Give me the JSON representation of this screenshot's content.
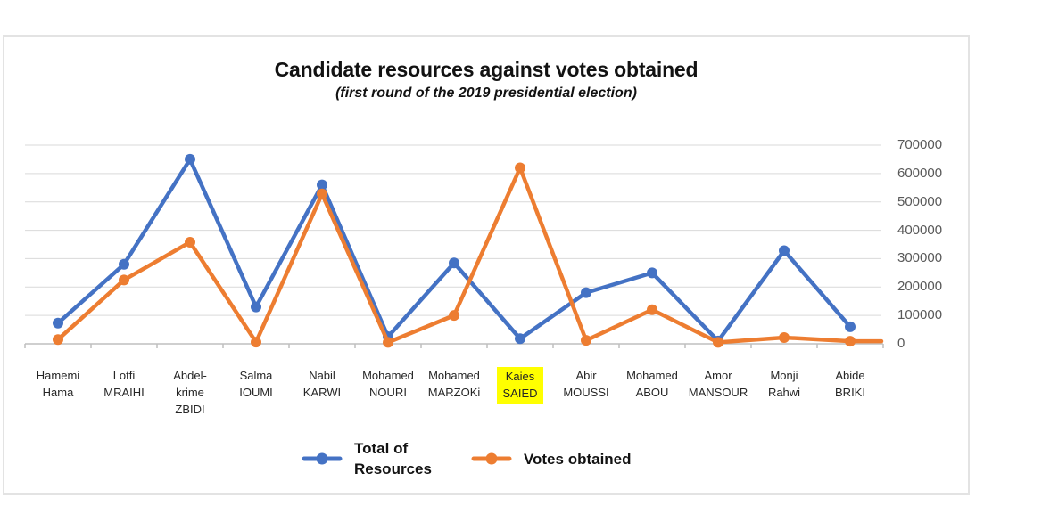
{
  "title": "Candidate resources against votes obtained",
  "subtitle": "(first round of the 2019 presidential election)",
  "legend": [
    {
      "label": "Total of\nResources",
      "color": "#4472c4"
    },
    {
      "label": "Votes obtained",
      "color": "#ed7d31"
    }
  ],
  "colors": {
    "resources_series": "#4472c4",
    "votes_series": "#ed7d31",
    "gridline": "#d9d9d9",
    "axis": "#bfbfbf",
    "highlight": "#ffff00"
  },
  "chart_data": {
    "type": "line",
    "title": "Candidate resources against votes obtained",
    "subtitle": "(first round of the 2019 presidential election)",
    "categories": [
      "Hamemi Hama",
      "Lotfi MRAIHI",
      "Abdel-krime ZBIDI",
      "Salma IOUMI",
      "Nabil KARWI",
      "Mohamed NOURI",
      "Mohamed MARZOKi",
      "Kaies SAIED",
      "Abir MOUSSI",
      "Mohamed ABOU",
      "Amor MANSOUR",
      "Monji Rahwi",
      "Abide BRIKI"
    ],
    "label_lines": [
      [
        "Hamemi",
        "Hama"
      ],
      [
        "Lotfi",
        "MRAIHI"
      ],
      [
        "Abdel-",
        "krime",
        "ZBIDI"
      ],
      [
        "Salma",
        "IOUMI"
      ],
      [
        "Nabil",
        "KARWI"
      ],
      [
        "Mohamed",
        "NOURI"
      ],
      [
        "Mohamed",
        "MARZOKi"
      ],
      [
        "Kaies",
        "SAIED"
      ],
      [
        "Abir",
        "MOUSSI"
      ],
      [
        "Mohamed",
        "ABOU"
      ],
      [
        "Amor",
        "MANSOUR"
      ],
      [
        "Monji",
        "Rahwi"
      ],
      [
        "Abide",
        "BRIKI"
      ]
    ],
    "highlighted_index": 7,
    "highlighted_category": "Kaies SAIED",
    "series": [
      {
        "name": "Total of Resources",
        "color": "#4472c4",
        "values": [
          73000,
          280000,
          650000,
          130000,
          560000,
          25000,
          285000,
          18000,
          180000,
          250000,
          10000,
          328000,
          60000
        ],
        "extend_to_plot_edge": false
      },
      {
        "name": "Votes obtained",
        "color": "#ed7d31",
        "values": [
          15000,
          225000,
          358000,
          6000,
          528000,
          5000,
          100000,
          620000,
          12000,
          120000,
          5000,
          22000,
          9000
        ],
        "extend_to_plot_edge": true
      }
    ],
    "ylim": [
      0,
      700000
    ],
    "ytick_interval": 100000,
    "yticks": [
      700000,
      600000,
      500000,
      400000,
      300000,
      200000,
      100000,
      0
    ],
    "ytick_side": "right",
    "grid": true,
    "legend_position": "bottom"
  }
}
